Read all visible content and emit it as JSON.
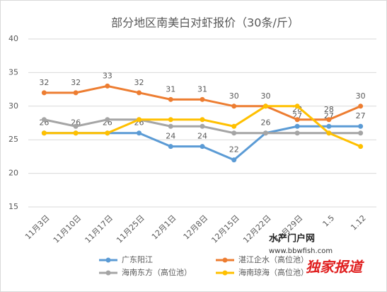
{
  "chart_data": {
    "type": "line",
    "title": "部分地区南美白对虾报价（30条/斤）",
    "categories": [
      "11月3日",
      "11月10日",
      "11月17日",
      "11月25日",
      "12月1日",
      "12月8日",
      "12月15日",
      "12月22日",
      "12月29日",
      "1.5",
      "1.12"
    ],
    "ylim": [
      15,
      40
    ],
    "yticks": [
      15,
      20,
      25,
      30,
      35,
      40
    ],
    "grid": true,
    "legend": "bottom",
    "series": [
      {
        "name": "广东阳江",
        "color": "#5b9bd5",
        "values": [
          26,
          26,
          26,
          26,
          24,
          24,
          22,
          26,
          27,
          27,
          27
        ],
        "show_labels": true
      },
      {
        "name": "湛江企水（高位池）",
        "color": "#ed7d31",
        "values": [
          32,
          32,
          33,
          32,
          31,
          31,
          30,
          30,
          28,
          28,
          30
        ],
        "show_labels": true
      },
      {
        "name": "海南东方（高位池）",
        "color": "#a5a5a5",
        "values": [
          28,
          27,
          28,
          28,
          27,
          27,
          26,
          26,
          26,
          26,
          26
        ],
        "show_labels": false
      },
      {
        "name": "海南琼海（高位池）",
        "color": "#ffc000",
        "values": [
          26,
          26,
          26,
          28,
          28,
          28,
          27,
          30,
          30,
          26,
          24
        ],
        "show_labels": false
      }
    ],
    "watermark": {
      "line1": "水产门户网",
      "line2": "www.bbwfish.com",
      "line3": "独家报道"
    }
  }
}
